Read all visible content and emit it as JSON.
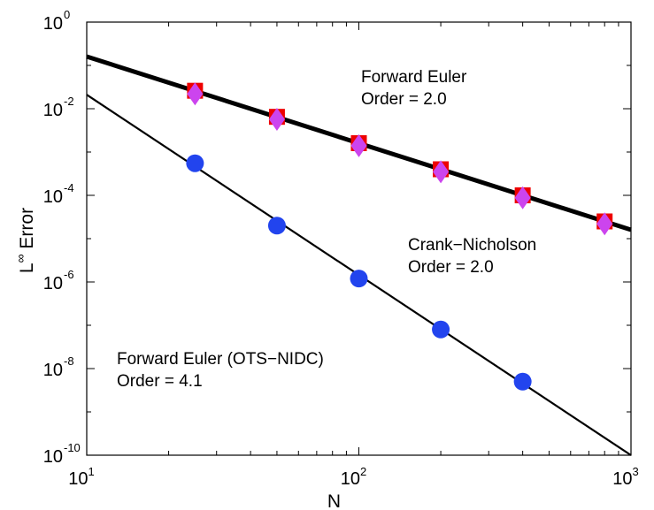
{
  "chart_data": {
    "type": "line",
    "xscale": "log",
    "yscale": "log",
    "xlabel": "N",
    "ylabel_base": "L",
    "ylabel_sup": "∞",
    "ylabel_rest": " Error",
    "xlim": [
      10,
      1000
    ],
    "ylim": [
      1e-10,
      1
    ],
    "x_ticks": [
      {
        "value": 10,
        "base": "10",
        "exp": "1"
      },
      {
        "value": 100,
        "base": "10",
        "exp": "2"
      },
      {
        "value": 1000,
        "base": "10",
        "exp": "3"
      }
    ],
    "y_ticks": [
      {
        "value": 1,
        "base": "10",
        "exp": "0"
      },
      {
        "value": 0.01,
        "base": "10",
        "exp": "-2"
      },
      {
        "value": 0.0001,
        "base": "10",
        "exp": "-4"
      },
      {
        "value": 1e-06,
        "base": "10",
        "exp": "-6"
      },
      {
        "value": 1e-08,
        "base": "10",
        "exp": "-8"
      },
      {
        "value": 1e-10,
        "base": "10",
        "exp": "-10"
      }
    ],
    "fit_lines": [
      {
        "name": "second-order-fit",
        "points": [
          [
            10,
            0.16
          ],
          [
            1000,
            1.6e-05
          ]
        ],
        "color": "#000000",
        "width": 5
      },
      {
        "name": "fourth-order-fit",
        "points": [
          [
            10,
            0.021
          ],
          [
            1000,
            1e-10
          ]
        ],
        "color": "#000000",
        "width": 2.2
      }
    ],
    "series": [
      {
        "name": "Forward Euler",
        "marker": "square",
        "color": "#ee0000",
        "x": [
          25,
          50,
          100,
          200,
          400,
          800
        ],
        "y": [
          0.026,
          0.0065,
          0.0016,
          0.0004,
          0.0001,
          2.5e-05
        ]
      },
      {
        "name": "Crank-Nicholson",
        "marker": "diamond",
        "color": "#cc44ee",
        "x": [
          25,
          50,
          100,
          200,
          400,
          800
        ],
        "y": [
          0.022,
          0.0057,
          0.0014,
          0.00035,
          8.8e-05,
          2.2e-05
        ]
      },
      {
        "name": "Forward Euler (OTS-NIDC)",
        "marker": "circle",
        "color": "#2244ee",
        "x": [
          25,
          50,
          100,
          200,
          400
        ],
        "y": [
          0.00055,
          2e-05,
          1.2e-06,
          8e-08,
          5e-09
        ]
      }
    ],
    "annotations": [
      {
        "name": "forward-euler-label",
        "lines": [
          "Forward Euler",
          "Order = 2.0"
        ]
      },
      {
        "name": "crank-nicholson-label",
        "lines": [
          "Crank−Nicholson",
          "Order = 2.0"
        ]
      },
      {
        "name": "ots-nidc-label",
        "lines": [
          "Forward Euler (OTS−NIDC)",
          "Order = 4.1"
        ]
      }
    ]
  }
}
